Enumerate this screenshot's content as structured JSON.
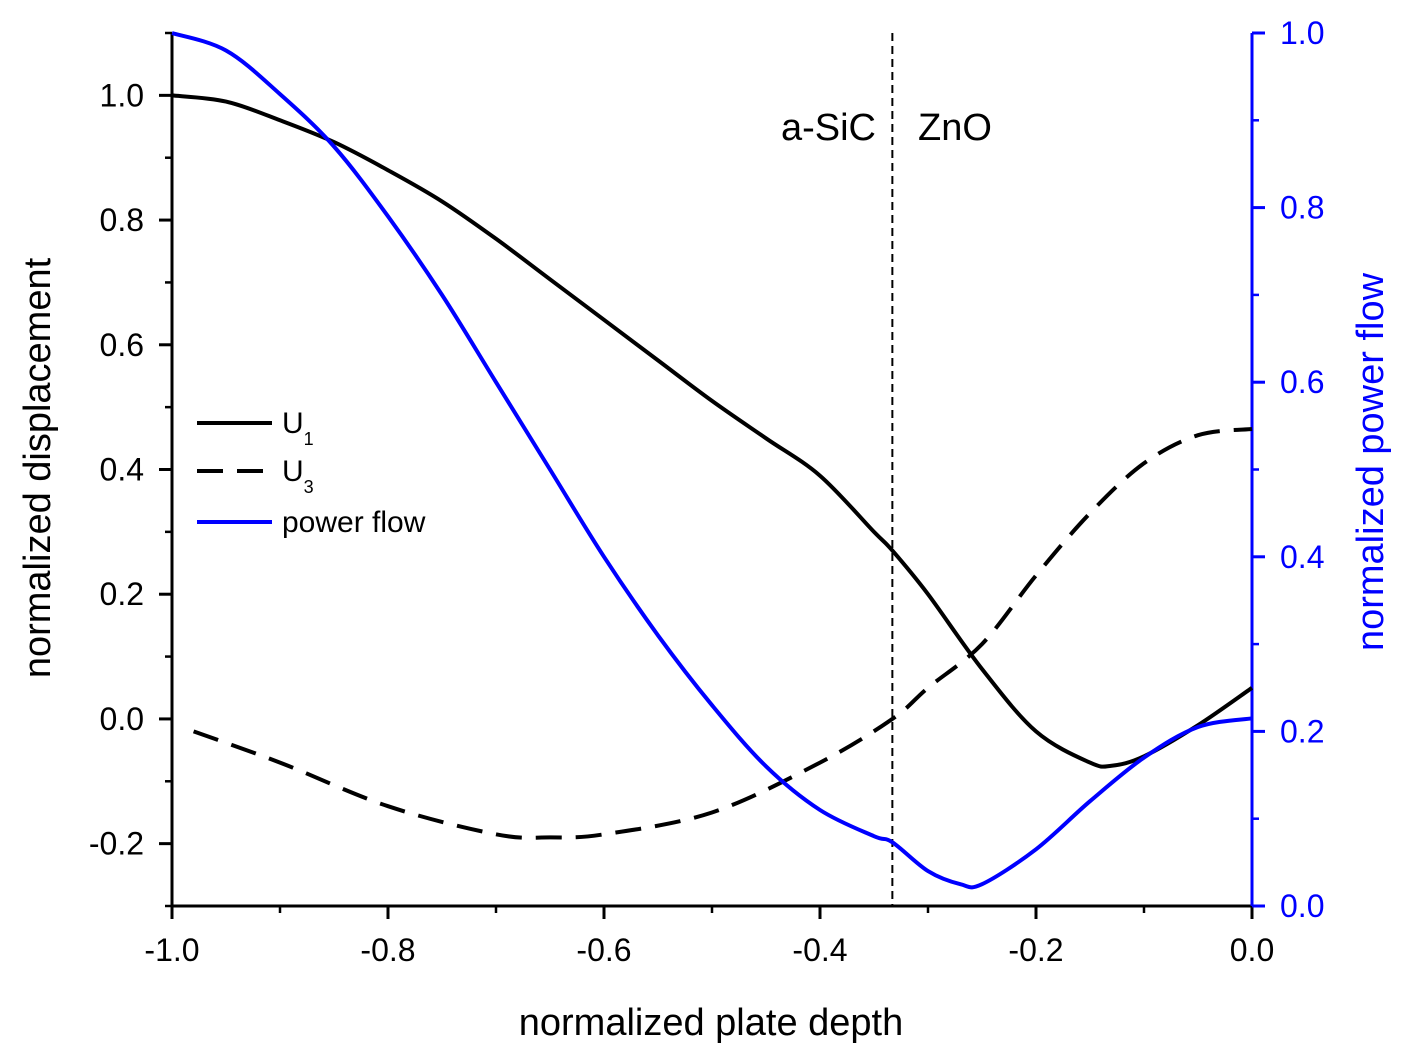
{
  "chart_data": {
    "type": "line",
    "xlabel": "normalized plate depth",
    "ylabel": "normalized displacement",
    "y2label": "normalized power flow",
    "xlim": [
      -1.0,
      0.0
    ],
    "ylim": [
      -0.3,
      1.1
    ],
    "y2lim": [
      0.0,
      1.0
    ],
    "x_ticks": [
      "-1.0",
      "-0.8",
      "-0.6",
      "-0.4",
      "-0.2",
      "0.0"
    ],
    "y_ticks": [
      "-0.2",
      "0.0",
      "0.2",
      "0.4",
      "0.6",
      "0.8",
      "1.0"
    ],
    "y2_ticks": [
      "0.0",
      "0.2",
      "0.4",
      "0.6",
      "0.8",
      "1.0"
    ],
    "grid": false,
    "legend_position": "middle-left",
    "interface": {
      "x": -0.333,
      "left_label": "a-SiC",
      "right_label": "ZnO"
    },
    "series": [
      {
        "name": "U",
        "subscript": "1",
        "axis": "left",
        "style": "solid",
        "color": "#000000",
        "x": [
          -1.0,
          -0.95,
          -0.9,
          -0.85,
          -0.8,
          -0.75,
          -0.7,
          -0.65,
          -0.6,
          -0.55,
          -0.5,
          -0.45,
          -0.4,
          -0.35,
          -0.333,
          -0.3,
          -0.25,
          -0.2,
          -0.15,
          -0.13,
          -0.1,
          -0.05,
          0.0
        ],
        "y": [
          1.0,
          0.99,
          0.96,
          0.925,
          0.88,
          0.83,
          0.77,
          0.705,
          0.64,
          0.575,
          0.51,
          0.45,
          0.39,
          0.3,
          0.27,
          0.2,
          0.08,
          -0.02,
          -0.07,
          -0.075,
          -0.06,
          -0.01,
          0.05
        ]
      },
      {
        "name": "U",
        "subscript": "3",
        "axis": "left",
        "style": "dashed",
        "color": "#000000",
        "x": [
          -0.98,
          -0.9,
          -0.8,
          -0.7,
          -0.65,
          -0.6,
          -0.5,
          -0.4,
          -0.333,
          -0.3,
          -0.25,
          -0.2,
          -0.15,
          -0.1,
          -0.05,
          0.0
        ],
        "y": [
          -0.02,
          -0.07,
          -0.14,
          -0.185,
          -0.19,
          -0.185,
          -0.15,
          -0.07,
          0.0,
          0.05,
          0.12,
          0.23,
          0.33,
          0.41,
          0.455,
          0.465
        ]
      },
      {
        "name": "power flow",
        "axis": "right",
        "style": "solid",
        "color": "#0000ff",
        "x": [
          -1.0,
          -0.95,
          -0.9,
          -0.85,
          -0.8,
          -0.75,
          -0.7,
          -0.65,
          -0.6,
          -0.55,
          -0.5,
          -0.45,
          -0.4,
          -0.35,
          -0.333,
          -0.3,
          -0.27,
          -0.25,
          -0.2,
          -0.15,
          -0.1,
          -0.05,
          0.0
        ],
        "y": [
          1.0,
          0.98,
          0.93,
          0.87,
          0.79,
          0.7,
          0.6,
          0.5,
          0.4,
          0.31,
          0.23,
          0.16,
          0.11,
          0.08,
          0.073,
          0.04,
          0.025,
          0.025,
          0.065,
          0.12,
          0.17,
          0.205,
          0.215
        ]
      }
    ]
  }
}
